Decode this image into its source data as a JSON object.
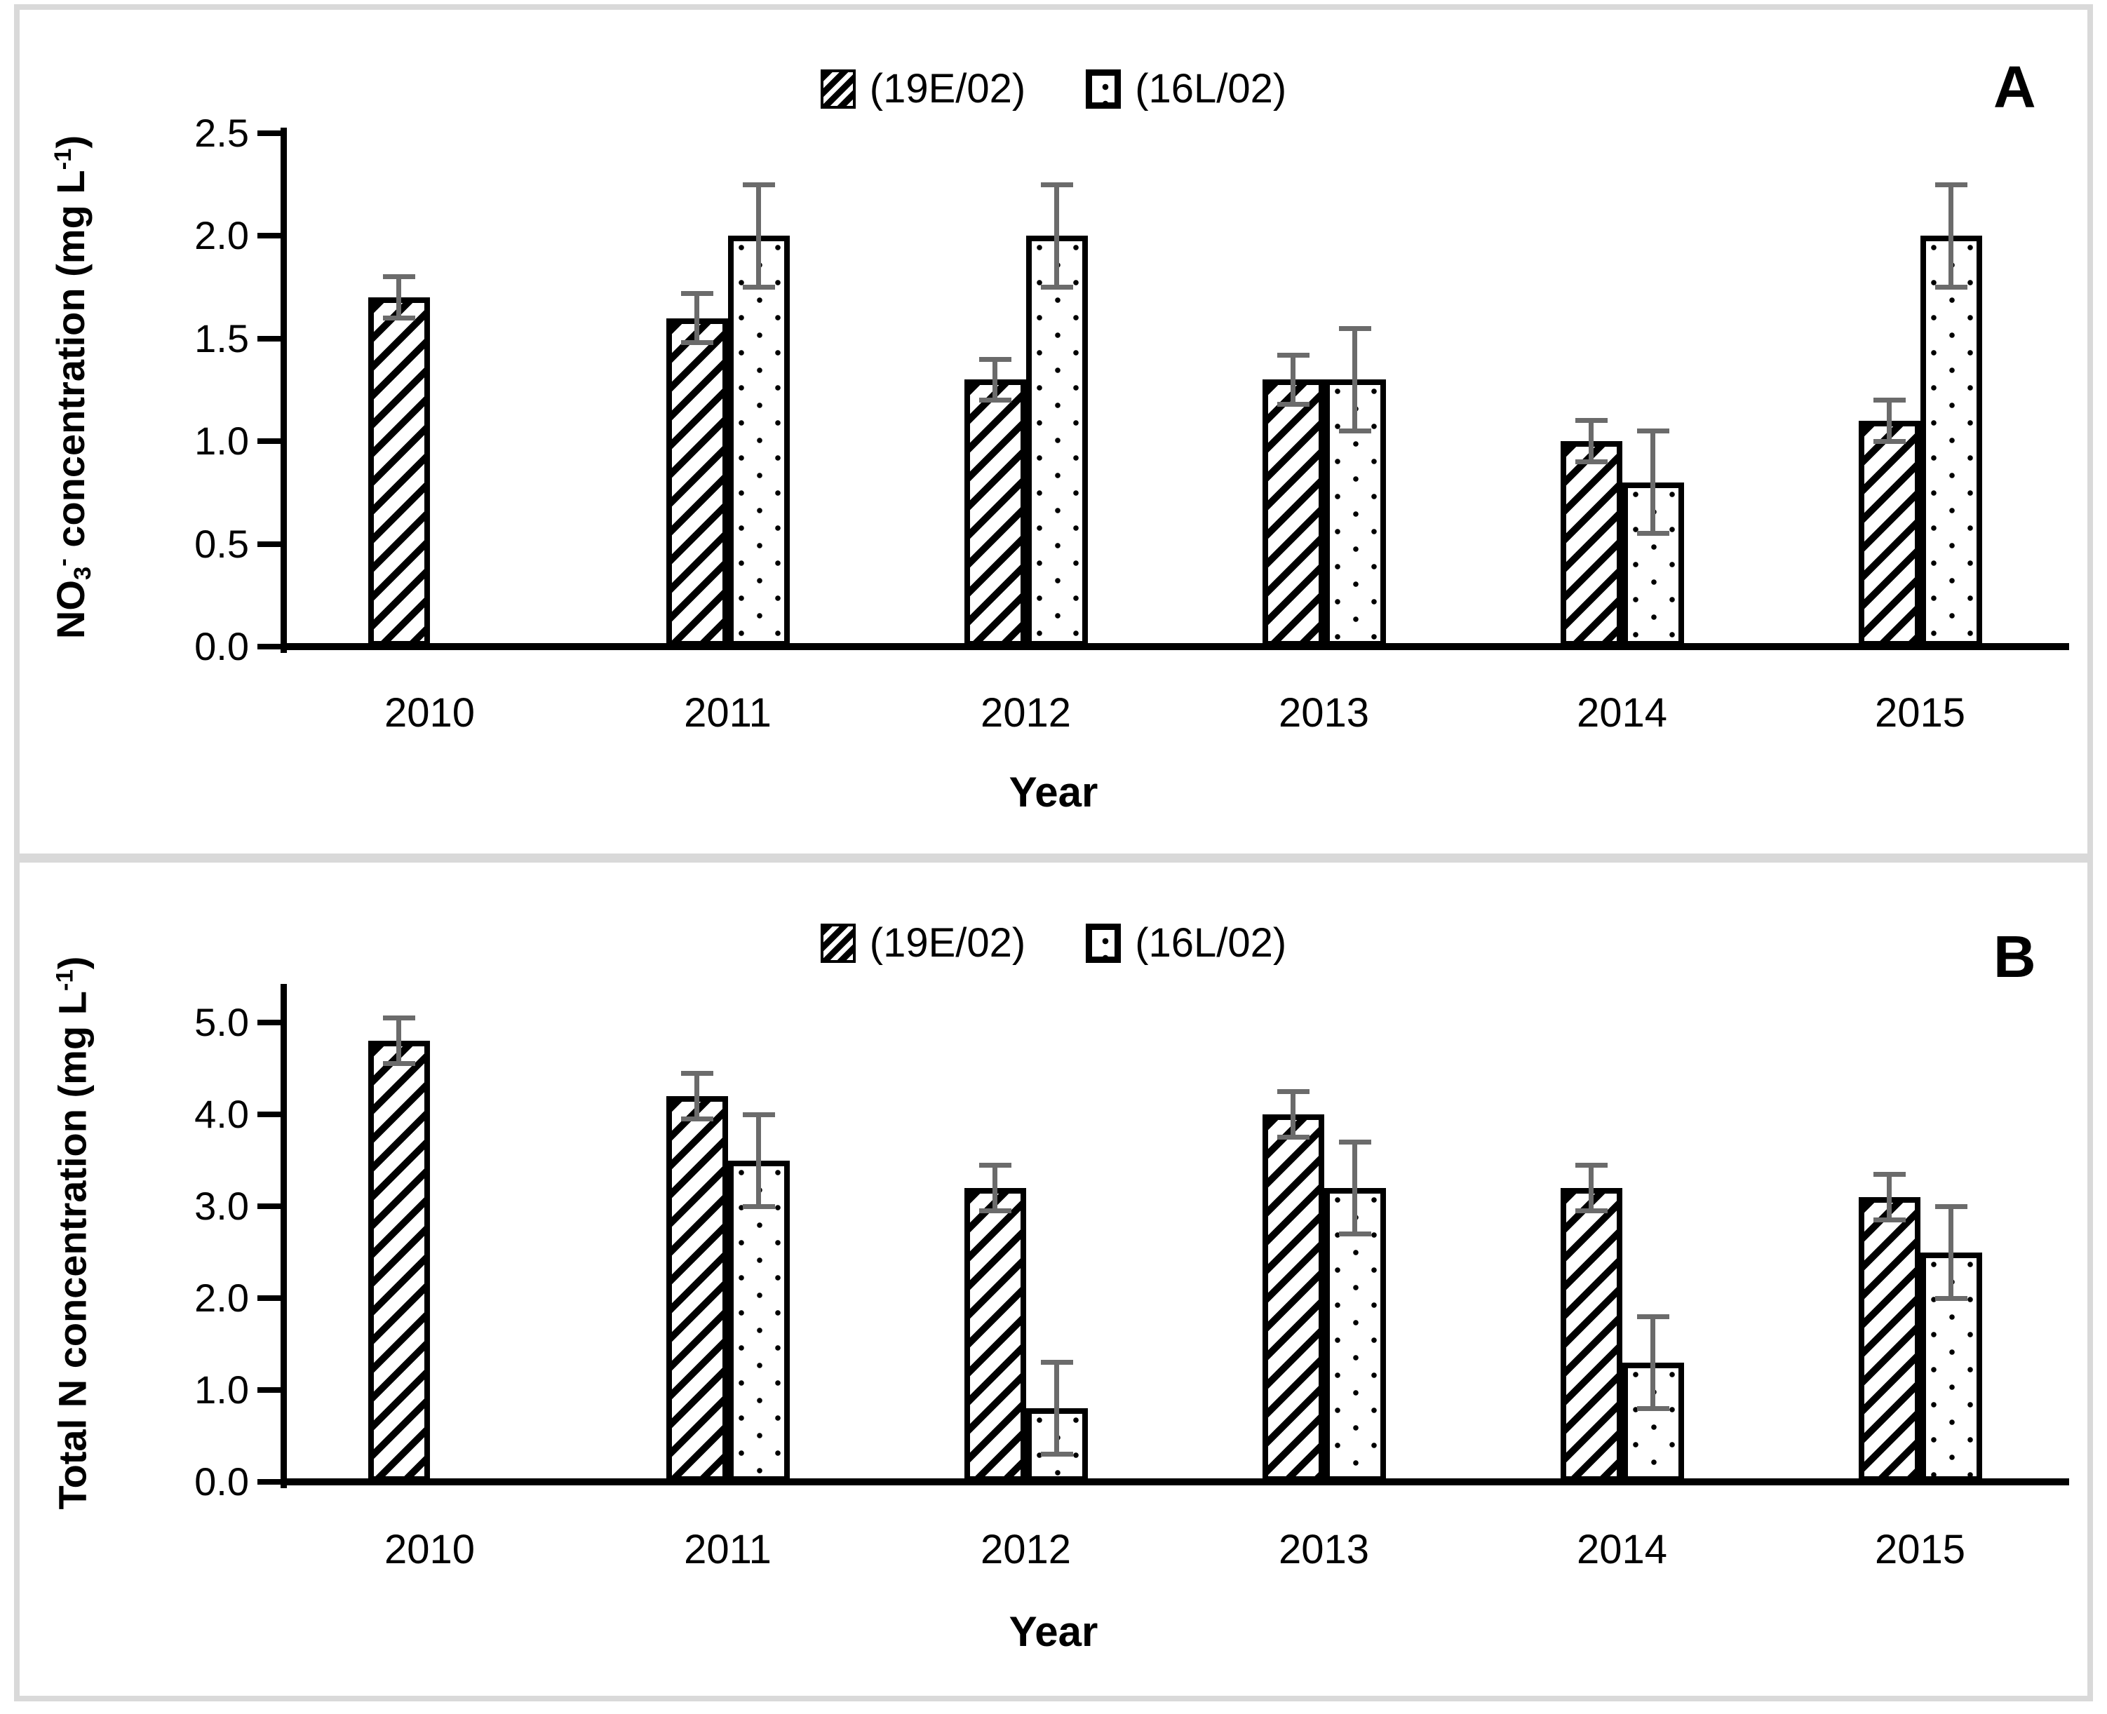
{
  "figure": {
    "frame_color": "#d9d9d9",
    "error_bar_color": "#6b6b6b",
    "bar_outline_color": "#000000",
    "background_color": "#ffffff"
  },
  "chart_data": [
    {
      "type": "bar",
      "panel_label": "A",
      "title": "",
      "xlabel": "Year",
      "ylabel_text": "NO3- concentration (mg L-1)",
      "ylabel_segments": [
        {
          "t": "NO"
        },
        {
          "t": "3",
          "v": "sub"
        },
        {
          "t": "-",
          "v": "sup"
        },
        {
          "t": " concentration (mg L"
        },
        {
          "t": "-1",
          "v": "sup"
        },
        {
          "t": ")"
        }
      ],
      "categories": [
        "2010",
        "2011",
        "2012",
        "2013",
        "2014",
        "2015"
      ],
      "yticks": [
        "0.0",
        "0.5",
        "1.0",
        "1.5",
        "2.0",
        "2.5"
      ],
      "ylim": [
        0,
        2.5
      ],
      "grid": false,
      "legend_position": "top-center",
      "legend": [
        {
          "pattern": "hatched",
          "label": "(19E/02)"
        },
        {
          "pattern": "dotted",
          "label": "(16L/02)"
        }
      ],
      "series": [
        {
          "name": "(19E/02)",
          "pattern": "hatched",
          "values": [
            1.7,
            1.6,
            1.3,
            1.3,
            1.0,
            1.1
          ],
          "errors": [
            0.1,
            0.12,
            0.1,
            0.12,
            0.1,
            0.1
          ]
        },
        {
          "name": "(16L/02)",
          "pattern": "dotted",
          "values": [
            null,
            2.0,
            2.0,
            1.3,
            0.8,
            2.0
          ],
          "errors": [
            null,
            0.25,
            0.25,
            0.25,
            0.25,
            0.25
          ]
        }
      ]
    },
    {
      "type": "bar",
      "panel_label": "B",
      "title": "",
      "xlabel": "Year",
      "ylabel_text": "Total N concentration (mg L-1)",
      "ylabel_segments": [
        {
          "t": "Total N concentration (mg L"
        },
        {
          "t": "-1",
          "v": "sup"
        },
        {
          "t": ")"
        }
      ],
      "categories": [
        "2010",
        "2011",
        "2012",
        "2013",
        "2014",
        "2015"
      ],
      "yticks": [
        "0.0",
        "1.0",
        "2.0",
        "3.0",
        "4.0",
        "5.0"
      ],
      "ylim": [
        0,
        5.5
      ],
      "grid": false,
      "legend_position": "top-center",
      "legend": [
        {
          "pattern": "hatched",
          "label": "(19E/02)"
        },
        {
          "pattern": "dotted",
          "label": "(16L/02)"
        }
      ],
      "series": [
        {
          "name": "(19E/02)",
          "pattern": "hatched",
          "values": [
            4.8,
            4.2,
            3.2,
            4.0,
            3.2,
            3.1
          ],
          "errors": [
            0.25,
            0.25,
            0.25,
            0.25,
            0.25,
            0.25
          ]
        },
        {
          "name": "(16L/02)",
          "pattern": "dotted",
          "values": [
            null,
            3.5,
            0.8,
            3.2,
            1.3,
            2.5
          ],
          "errors": [
            null,
            0.5,
            0.5,
            0.5,
            0.5,
            0.5
          ]
        }
      ]
    }
  ]
}
